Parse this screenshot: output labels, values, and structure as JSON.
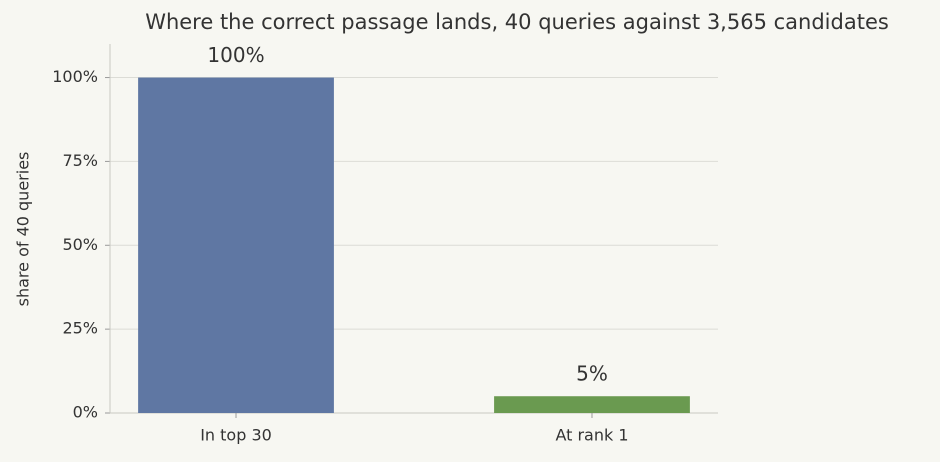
{
  "chart_data": {
    "type": "bar",
    "title": "Where the correct passage lands, 40 queries against 3,565 candidates",
    "y_label": "share of 40 queries",
    "categories": [
      "In top 30",
      "At rank 1"
    ],
    "values": [
      100,
      5
    ],
    "value_labels": [
      "100%",
      "5%"
    ],
    "colors": [
      "#5f77a3",
      "#6a9a50"
    ],
    "ylim": [
      0,
      110
    ],
    "yticks": [
      {
        "value": 0,
        "label": "0%"
      },
      {
        "value": 25,
        "label": "25%"
      },
      {
        "value": 50,
        "label": "50%"
      },
      {
        "value": 75,
        "label": "75%"
      },
      {
        "value": 100,
        "label": "100%"
      }
    ],
    "grid": true
  }
}
